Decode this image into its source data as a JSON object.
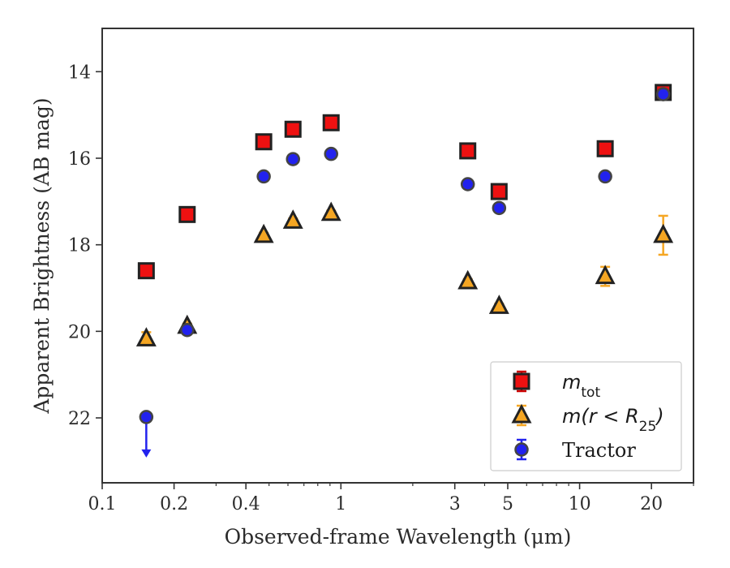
{
  "chart_data": {
    "type": "scatter",
    "xscale": "log",
    "yinverted": true,
    "xlim": [
      0.1,
      30
    ],
    "ylim": [
      23.5,
      13
    ],
    "xlabel": "Observed-frame Wavelength (μm)",
    "ylabel": "Apparent Brightness (AB mag)",
    "xticks": [
      {
        "value": 0.1,
        "label": "0.1"
      },
      {
        "value": 0.2,
        "label": "0.2"
      },
      {
        "value": 0.4,
        "label": "0.4"
      },
      {
        "value": 1,
        "label": "1"
      },
      {
        "value": 3,
        "label": "3"
      },
      {
        "value": 5,
        "label": "5"
      },
      {
        "value": 10,
        "label": "10"
      },
      {
        "value": 20,
        "label": "20"
      }
    ],
    "xminorticks": [
      0.3,
      0.5,
      0.6,
      0.7,
      0.8,
      0.9,
      2,
      4,
      6,
      7,
      8,
      9,
      30
    ],
    "yticks": [
      {
        "value": 14,
        "label": "14"
      },
      {
        "value": 16,
        "label": "16"
      },
      {
        "value": 18,
        "label": "18"
      },
      {
        "value": 20,
        "label": "20"
      },
      {
        "value": 22,
        "label": "22"
      }
    ],
    "legend_position": "lower-right",
    "series": [
      {
        "name": "m_tot",
        "marker": "square",
        "color": "#ee1111",
        "edge": "#222222",
        "errcolor": "#cc0000",
        "points": [
          {
            "x": 0.153,
            "y": 18.6,
            "err": 0.05
          },
          {
            "x": 0.227,
            "y": 17.3,
            "err": 0.05
          },
          {
            "x": 0.475,
            "y": 15.62,
            "err": 0.05
          },
          {
            "x": 0.63,
            "y": 15.33,
            "err": 0.05
          },
          {
            "x": 0.91,
            "y": 15.18,
            "err": 0.05
          },
          {
            "x": 3.4,
            "y": 15.83,
            "err": 0.05
          },
          {
            "x": 4.6,
            "y": 16.77,
            "err": 0.05
          },
          {
            "x": 12.8,
            "y": 15.78,
            "err": 0.05
          },
          {
            "x": 22.4,
            "y": 14.48,
            "err": 0.05
          }
        ]
      },
      {
        "name": "m(r < R25)",
        "marker": "triangle",
        "color": "#f5a623",
        "edge": "#222222",
        "errcolor": "#f5a623",
        "points": [
          {
            "x": 0.153,
            "y": 20.17,
            "err": 0.15
          },
          {
            "x": 0.227,
            "y": 19.88,
            "err": 0.05
          },
          {
            "x": 0.475,
            "y": 17.78,
            "err": 0.05
          },
          {
            "x": 0.63,
            "y": 17.45,
            "err": 0.05
          },
          {
            "x": 0.91,
            "y": 17.27,
            "err": 0.05
          },
          {
            "x": 3.4,
            "y": 18.85,
            "err": 0.05
          },
          {
            "x": 4.6,
            "y": 19.42,
            "err": 0.05
          },
          {
            "x": 12.8,
            "y": 18.73,
            "err": 0.22
          },
          {
            "x": 22.4,
            "y": 17.78,
            "err": 0.45
          }
        ]
      },
      {
        "name": "Tractor",
        "marker": "circle",
        "color": "#2222ee",
        "edge": "#444444",
        "errcolor": "#2222ee",
        "points": [
          {
            "x": 0.153,
            "y": 21.98,
            "err": 0.05,
            "upper_limit": true
          },
          {
            "x": 0.227,
            "y": 19.97,
            "err": 0.05
          },
          {
            "x": 0.475,
            "y": 16.42,
            "err": 0.05
          },
          {
            "x": 0.63,
            "y": 16.02,
            "err": 0.05
          },
          {
            "x": 0.91,
            "y": 15.9,
            "err": 0.05
          },
          {
            "x": 3.4,
            "y": 16.6,
            "err": 0.05
          },
          {
            "x": 4.6,
            "y": 17.15,
            "err": 0.05
          },
          {
            "x": 12.8,
            "y": 16.42,
            "err": 0.05
          },
          {
            "x": 22.4,
            "y": 14.52,
            "err": 0.05
          }
        ]
      }
    ],
    "legend": {
      "entries": [
        {
          "label_main": "m",
          "label_sub": "tot"
        },
        {
          "label_main": "m(r < R",
          "label_sub": "25",
          "label_tail": ")"
        },
        {
          "label_main": "Tractor"
        }
      ]
    }
  }
}
